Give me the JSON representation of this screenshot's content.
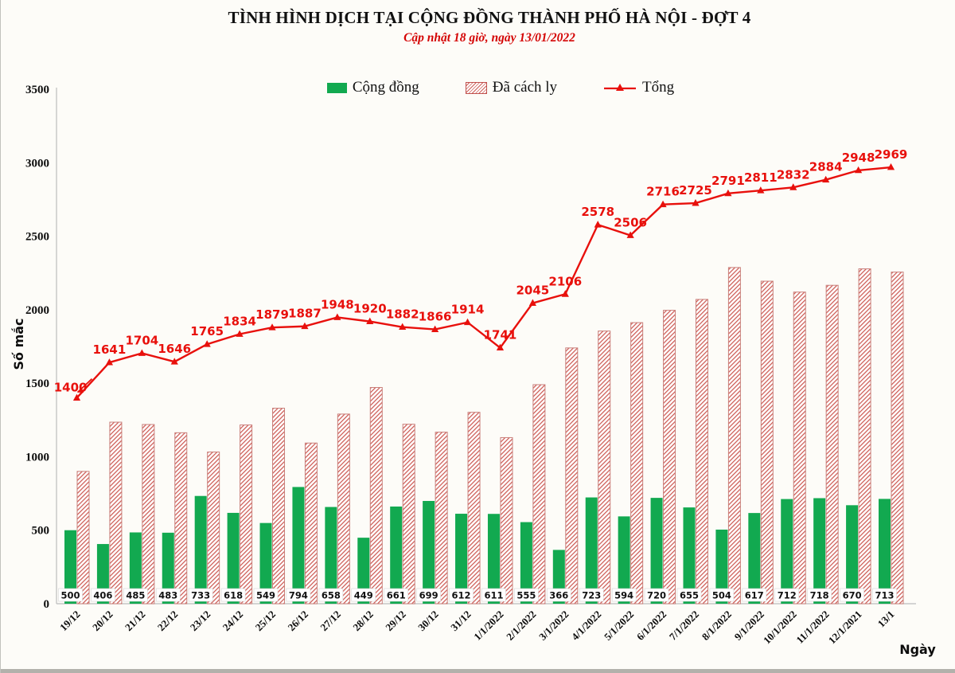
{
  "header": {
    "title": "TÌNH HÌNH DỊCH TẠI CỘNG ĐỒNG THÀNH PHỐ HÀ NỘI - ĐỢT 4",
    "subtitle": "Cập nhật 18 giờ, ngày 13/01/2022"
  },
  "chart_data": {
    "type": "combo-bar-line",
    "title": "TÌNH HÌNH DỊCH TẠI CỘNG ĐỒNG THÀNH PHỐ HÀ NỘI - ĐỢT 4",
    "subtitle": "Cập nhật 18 giờ, ngày 13/01/2022",
    "xlabel": "Ngày",
    "ylabel": "Số mắc",
    "ylim": [
      0,
      3500
    ],
    "ytick_step": 500,
    "grid": false,
    "legend_position": "top",
    "categories": [
      "19/12",
      "20/12",
      "21/12",
      "22/12",
      "23/12",
      "24/12",
      "25/12",
      "26/12",
      "27/12",
      "28/12",
      "29/12",
      "30/12",
      "31/12",
      "1/1/2022",
      "2/1/2022",
      "3/1/2022",
      "4/1/2022",
      "5/1/2022",
      "6/1/2022",
      "7/1/2022",
      "8/1/2022",
      "9/1/2022",
      "10/1/2022",
      "11/1/2022",
      "12/1/2021",
      "13/1"
    ],
    "series": [
      {
        "name": "Cộng đồng",
        "type": "bar",
        "style": "solid",
        "color": "#12a950",
        "data_labels_shown": true,
        "values": [
          500,
          406,
          485,
          483,
          733,
          618,
          549,
          794,
          658,
          449,
          661,
          699,
          612,
          611,
          555,
          366,
          723,
          594,
          720,
          655,
          504,
          617,
          712,
          718,
          670,
          713
        ]
      },
      {
        "name": "Đã cách ly",
        "type": "bar",
        "style": "hatched",
        "color": "#c0504d",
        "data_labels_shown": false,
        "values": [
          900,
          1235,
          1219,
          1163,
          1032,
          1216,
          1330,
          1093,
          1290,
          1471,
          1221,
          1167,
          1302,
          1130,
          1490,
          1740,
          1855,
          1912,
          1996,
          2070,
          2287,
          2194,
          2120,
          2166,
          2278,
          2256
        ]
      },
      {
        "name": "Tổng",
        "type": "line",
        "marker": "triangle",
        "color": "#e8100c",
        "data_labels_shown": true,
        "values": [
          1400,
          1641,
          1704,
          1646,
          1765,
          1834,
          1879,
          1887,
          1948,
          1920,
          1882,
          1866,
          1914,
          1741,
          2045,
          2106,
          2578,
          2506,
          2716,
          2725,
          2791,
          2811,
          2832,
          2884,
          2948,
          2969
        ]
      }
    ]
  }
}
